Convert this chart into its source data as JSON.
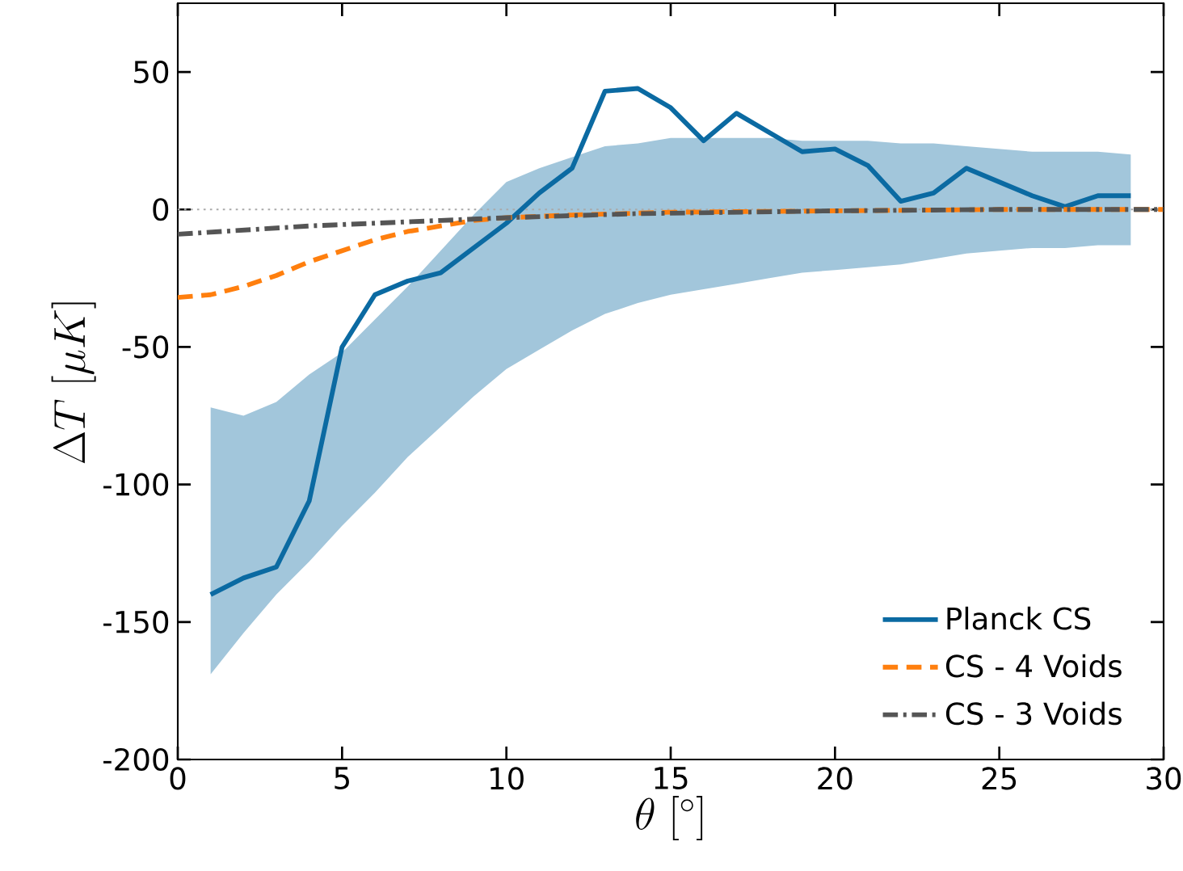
{
  "chart_data": {
    "type": "line",
    "xlabel": "\\theta\\;[^\\circ]",
    "ylabel": "\\Delta T\\;[\\mu K]",
    "xlim": [
      0,
      30
    ],
    "ylim": [
      -200,
      75
    ],
    "xticks": [
      0,
      5,
      10,
      15,
      20,
      25,
      30
    ],
    "yticks": [
      -200,
      -150,
      -100,
      -50,
      0,
      50
    ],
    "grid": false,
    "legend": "bottom right",
    "series": [
      {
        "name": "Planck CS",
        "color": "#0b6aa2",
        "line_style": "solid",
        "x": [
          1,
          2,
          3,
          4,
          5,
          6,
          7,
          8,
          9,
          10,
          11,
          12,
          13,
          14,
          15,
          16,
          17,
          18,
          19,
          20,
          21,
          22,
          23,
          24,
          25,
          26,
          27,
          28,
          29
        ],
        "values": [
          -140,
          -134,
          -130,
          -106,
          -50,
          -31,
          -26,
          -23,
          -14,
          -5,
          6,
          15,
          43,
          44,
          37,
          25,
          35,
          28,
          21,
          22,
          16,
          3,
          6,
          15,
          10,
          5,
          1,
          5,
          5
        ],
        "upper": [
          -72,
          -75,
          -70,
          -60,
          -52,
          -40,
          -28,
          -15,
          -2,
          10,
          15,
          19,
          23,
          24,
          26,
          26,
          26,
          26,
          25,
          25,
          25,
          24,
          24,
          23,
          22,
          21,
          21,
          21,
          20
        ],
        "lower": [
          -169,
          -154,
          -140,
          -128,
          -115,
          -103,
          -90,
          -79,
          -68,
          -58,
          -51,
          -44,
          -38,
          -34,
          -31,
          -29,
          -27,
          -25,
          -23,
          -22,
          -21,
          -20,
          -18,
          -16,
          -15,
          -14,
          -14,
          -13,
          -13
        ]
      },
      {
        "name": "CS - 4 Voids",
        "color": "#ff7f0e",
        "line_style": "dashed",
        "x": [
          0,
          1,
          2,
          3,
          4,
          5,
          6,
          7,
          8,
          9,
          10,
          12,
          15,
          20,
          25,
          30
        ],
        "values": [
          -32,
          -31,
          -28,
          -24,
          -19,
          -15,
          -11,
          -8,
          -6,
          -4,
          -3,
          -2,
          -1,
          -0.5,
          0,
          0
        ]
      },
      {
        "name": "CS - 3 Voids",
        "color": "#555555",
        "line_style": "dashdot",
        "x": [
          0,
          2,
          4,
          6,
          8,
          10,
          14,
          20,
          25,
          30
        ],
        "values": [
          -9,
          -7.5,
          -6,
          -5,
          -4,
          -3,
          -1.5,
          -0.5,
          0,
          0
        ]
      }
    ],
    "ref_lines": [
      {
        "axis": "y",
        "value": 0,
        "color": "#aaaaaa",
        "line_style": "dotted"
      }
    ]
  }
}
